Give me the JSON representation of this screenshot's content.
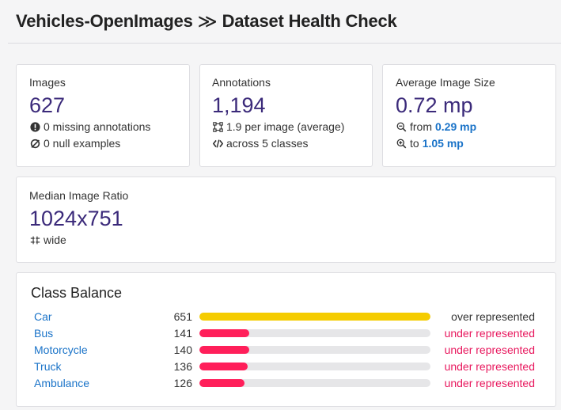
{
  "header": {
    "project": "Vehicles-OpenImages",
    "separator": "≫",
    "page": "Dataset Health Check"
  },
  "cards": {
    "images": {
      "label": "Images",
      "value": "627",
      "line1": "0 missing annotations",
      "line2": "0 null examples"
    },
    "annotations": {
      "label": "Annotations",
      "value": "1,194",
      "line1": "1.9 per image (average)",
      "line2": "across 5 classes"
    },
    "size": {
      "label": "Average Image Size",
      "value": "0.72 mp",
      "from_prefix": "from",
      "from_value": "0.29 mp",
      "to_prefix": "to",
      "to_value": "1.05 mp"
    },
    "ratio": {
      "label": "Median Image Ratio",
      "value": "1024x751",
      "line1": "wide"
    }
  },
  "class_balance": {
    "title": "Class Balance",
    "max": 651,
    "classes": [
      {
        "name": "Car",
        "count": 651,
        "status": "over represented",
        "kind": "over"
      },
      {
        "name": "Bus",
        "count": 141,
        "status": "under represented",
        "kind": "under"
      },
      {
        "name": "Motorcycle",
        "count": 140,
        "status": "under represented",
        "kind": "under"
      },
      {
        "name": "Truck",
        "count": 136,
        "status": "under represented",
        "kind": "under"
      },
      {
        "name": "Ambulance",
        "count": 126,
        "status": "under represented",
        "kind": "under"
      }
    ]
  },
  "colors": {
    "over": "#f5cc00",
    "under": "#ff1f5a",
    "accent": "#3b2a7a",
    "link": "#1a73c8"
  }
}
